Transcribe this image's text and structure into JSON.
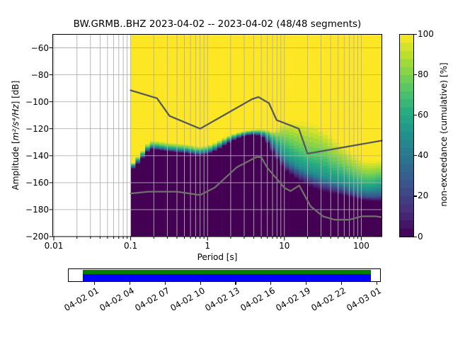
{
  "figure": {
    "title": "BW.GRMB..BHZ   2023-04-02 -- 2023-04-02  (48/48 segments)",
    "xlabel": "Period [s]",
    "ylabel_pre": "Amplitude [",
    "ylabel_math": "m²/s⁴/Hz",
    "ylabel_post": "] [dB]",
    "colorbar_label": "non-exceedance (cumulative) [%]"
  },
  "chart_data": {
    "type": "heatmap",
    "title": "BW.GRMB..BHZ   2023-04-02 -- 2023-04-02  (48/48 segments)",
    "station": "BW.GRMB..BHZ",
    "date_range": "2023-04-02 -- 2023-04-02",
    "segments_used": 48,
    "segments_total": 48,
    "xlabel": "Period [s]",
    "ylabel": "Amplitude [m²/s⁴/Hz] [dB]",
    "colorbar_label": "non-exceedance (cumulative) [%]",
    "x_scale": "log",
    "xlim": [
      0.01,
      185
    ],
    "ylim": [
      -200,
      -50
    ],
    "clim": [
      0,
      100
    ],
    "grid": true,
    "colormap": "viridis",
    "colormap_levels": 25,
    "x_ticks": {
      "values": [
        0.01,
        0.1,
        1,
        10,
        100
      ],
      "labels": [
        "0.01",
        "0.1",
        "1",
        "10",
        "100"
      ]
    },
    "y_ticks": {
      "values": [
        -60,
        -80,
        -100,
        -120,
        -140,
        -160,
        -180,
        -200
      ],
      "labels": [
        "−60",
        "−80",
        "−100",
        "−120",
        "−140",
        "−160",
        "−180",
        "−200"
      ]
    },
    "colorbar_ticks": {
      "values": [
        0,
        20,
        40,
        60,
        80,
        100
      ],
      "labels": [
        "0",
        "20",
        "40",
        "60",
        "80",
        "100"
      ]
    },
    "ppsd_percentiles": {
      "description": "Amplitude [dB] at non-exceedance fractions 0/25/50/75/100 % per log10(period)",
      "log10_period": [
        -1.0,
        -0.875,
        -0.75,
        -0.625,
        -0.5,
        -0.375,
        -0.25,
        -0.125,
        0.0,
        0.125,
        0.25,
        0.375,
        0.5,
        0.625,
        0.75,
        0.875,
        1.0,
        1.125,
        1.25,
        1.375,
        1.5,
        1.625,
        1.75,
        1.875,
        2.0,
        2.125,
        2.25
      ],
      "p0": [
        -151.5,
        -144.5,
        -135.0,
        -136.0,
        -137.0,
        -137.8,
        -138.5,
        -140.0,
        -139.0,
        -136.0,
        -131.5,
        -127.8,
        -125.3,
        -124.5,
        -127.5,
        -141.0,
        -150.5,
        -156.0,
        -160.5,
        -164.0,
        -166.5,
        -168.0,
        -169.5,
        -171.0,
        -173.0,
        -173.5,
        -174.0
      ],
      "p25": [
        -150.5,
        -142.8,
        -133.8,
        -134.8,
        -135.8,
        -136.5,
        -137.2,
        -138.7,
        -137.7,
        -134.7,
        -130.2,
        -126.6,
        -124.4,
        -123.6,
        -125.8,
        -136.0,
        -146.0,
        -151.0,
        -155.0,
        -158.0,
        -161.0,
        -163.0,
        -165.0,
        -167.5,
        -170.0,
        -170.5,
        -170.0
      ],
      "p50": [
        -149.5,
        -141.5,
        -132.8,
        -133.8,
        -134.8,
        -135.3,
        -136.0,
        -137.5,
        -136.5,
        -133.5,
        -129.0,
        -125.7,
        -123.6,
        -122.8,
        -124.3,
        -131.0,
        -141.0,
        -146.5,
        -150.0,
        -153.0,
        -156.0,
        -158.5,
        -160.5,
        -162.5,
        -165.0,
        -165.5,
        -164.0
      ],
      "p75": [
        -148.5,
        -140.2,
        -131.3,
        -132.0,
        -133.0,
        -133.5,
        -134.3,
        -135.7,
        -134.7,
        -131.8,
        -127.6,
        -124.5,
        -122.6,
        -121.8,
        -122.5,
        -126.0,
        -128.0,
        -132.0,
        -136.0,
        -138.5,
        -139.0,
        -144.0,
        -148.0,
        -151.5,
        -155.5,
        -156.0,
        -154.0
      ],
      "p100": [
        -147.5,
        -138.5,
        -128.5,
        -129.2,
        -130.2,
        -130.8,
        -131.5,
        -133.0,
        -132.3,
        -129.5,
        -125.8,
        -123.0,
        -121.3,
        -120.5,
        -120.5,
        -122.0,
        -114.5,
        -114.0,
        -114.5,
        -116.0,
        -120.0,
        -126.0,
        -132.0,
        -138.0,
        -143.0,
        -144.0,
        -143.0
      ]
    },
    "noise_models": {
      "high": {
        "name": "NHNM",
        "periods": [
          0.1,
          0.22,
          0.32,
          0.8,
          3.8,
          4.6,
          6.3,
          7.9,
          15.4,
          20.0,
          185.0
        ],
        "db": [
          -91.5,
          -97.4,
          -110.5,
          -120.0,
          -98.0,
          -96.5,
          -101.0,
          -113.5,
          -120.0,
          -138.5,
          -128.8
        ],
        "color": "#595959"
      },
      "low": {
        "name": "NLNM",
        "periods": [
          0.1,
          0.17,
          0.4,
          0.8,
          1.24,
          2.4,
          4.3,
          5.0,
          6.0,
          10.0,
          12.0,
          15.6,
          21.9,
          31.6,
          45.0,
          70.0,
          101.0,
          154.0,
          185.0
        ],
        "db": [
          -168.0,
          -166.7,
          -166.7,
          -169.2,
          -163.7,
          -148.6,
          -141.1,
          -141.1,
          -149.0,
          -163.8,
          -166.2,
          -162.1,
          -177.5,
          -185.0,
          -187.5,
          -187.5,
          -185.0,
          -185.0,
          -185.6
        ],
        "color": "#70716a"
      }
    },
    "timeline": {
      "tick_labels": [
        "04-02 01",
        "04-02 04",
        "04-02 07",
        "04-02 10",
        "04-02 13",
        "04-02 16",
        "04-02 19",
        "04-02 22",
        "04-03 01"
      ],
      "coverage_color": "#008000",
      "extent_color": "#0000ff"
    },
    "colors": {
      "grid": "#b0b0b0",
      "low_end": "#440154",
      "high_end": "#fde725",
      "frame": "#000000"
    }
  }
}
